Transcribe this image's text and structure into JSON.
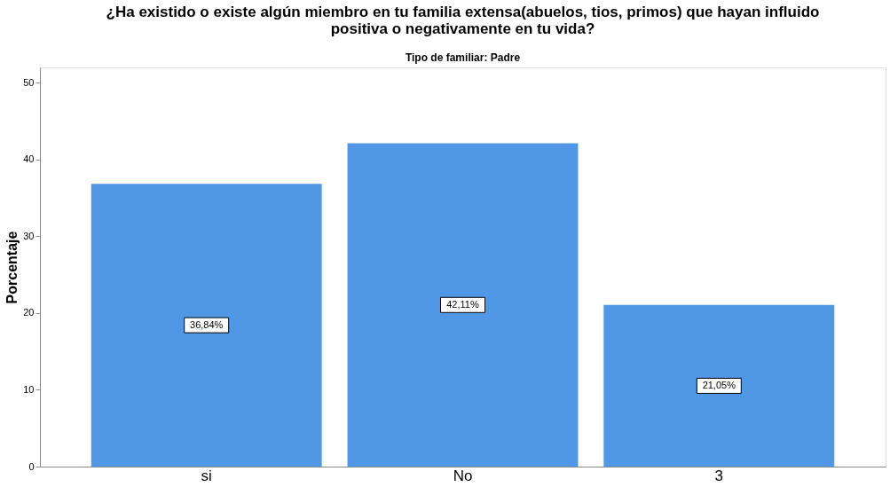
{
  "chart_data": {
    "type": "bar",
    "title": [
      "¿Ha existido o existe algún miembro en tu familia extensa(abuelos, tios, primos) que hayan influido",
      "positiva o negativamente en tu vida?"
    ],
    "subtitle": "Tipo de familiar: Padre",
    "ylabel": "Porcentaje",
    "categories": [
      "si",
      "No",
      "3"
    ],
    "values": [
      36.84,
      42.11,
      21.05
    ],
    "value_labels": [
      "36,84%",
      "42,11%",
      "21,05%"
    ],
    "color": "#5097e6",
    "ylim": [
      0,
      52
    ],
    "yticks": [
      0,
      10,
      20,
      30,
      40,
      50
    ],
    "grid": false
  }
}
